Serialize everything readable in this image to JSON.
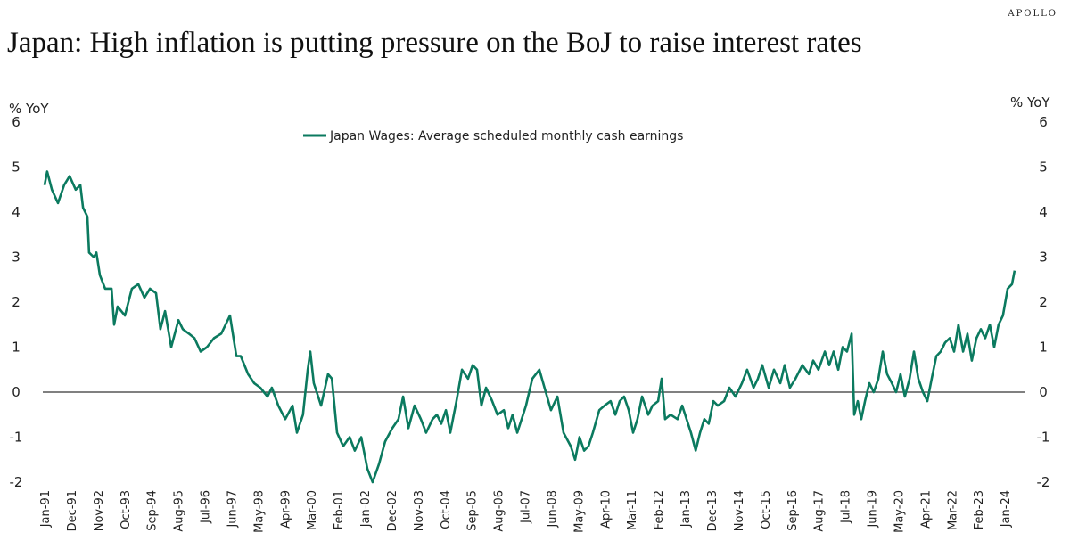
{
  "brand": "APOLLO",
  "title": "Japan: High inflation is putting pressure on the BoJ to raise interest rates",
  "chart_data": {
    "type": "line",
    "title": "Japan: High inflation is putting pressure on the BoJ to raise interest rates",
    "ylabel_left": "% YoY",
    "ylabel_right": "% YoY",
    "ylim": [
      -2,
      6
    ],
    "yticks": [
      "6",
      "5",
      "4",
      "3",
      "2",
      "1",
      "0",
      "-1",
      "-2"
    ],
    "x_unit": "years since Jan 1991",
    "xlim": [
      0,
      33.6
    ],
    "xtick_labels": [
      "Jan-91",
      "Dec-91",
      "Nov-92",
      "Oct-93",
      "Sep-94",
      "Aug-95",
      "Jul-96",
      "Jun-97",
      "May-98",
      "Apr-99",
      "Mar-00",
      "Feb-01",
      "Jan-02",
      "Dec-02",
      "Nov-03",
      "Oct-04",
      "Sep-05",
      "Aug-06",
      "Jul-07",
      "Jun-08",
      "May-09",
      "Apr-10",
      "Mar-11",
      "Feb-12",
      "Jan-13",
      "Dec-13",
      "Nov-14",
      "Oct-15",
      "Sep-16",
      "Aug-17",
      "Jul-18",
      "Jun-19",
      "May-20",
      "Apr-21",
      "Mar-22",
      "Feb-23",
      "Jan-24"
    ],
    "xtick_step_months": 11,
    "legend": "top-center",
    "series": [
      {
        "name": "Japan Wages: Average scheduled monthly cash earnings",
        "color": "#0b7a5f",
        "x": [
          0.0,
          0.09,
          0.25,
          0.46,
          0.67,
          0.86,
          1.07,
          1.23,
          1.32,
          1.47,
          1.53,
          1.69,
          1.78,
          1.9,
          2.08,
          2.3,
          2.39,
          2.51,
          2.76,
          3.0,
          3.22,
          3.43,
          3.62,
          3.83,
          3.98,
          4.14,
          4.35,
          4.6,
          4.75,
          4.96,
          5.15,
          5.36,
          5.58,
          5.82,
          6.07,
          6.37,
          6.59,
          6.74,
          6.99,
          7.2,
          7.41,
          7.66,
          7.81,
          8.03,
          8.27,
          8.52,
          8.67,
          8.88,
          9.04,
          9.13,
          9.25,
          9.5,
          9.74,
          9.87,
          10.05,
          10.26,
          10.48,
          10.66,
          10.88,
          11.09,
          11.27,
          11.49,
          11.7,
          11.95,
          12.16,
          12.32,
          12.5,
          12.71,
          12.93,
          13.11,
          13.33,
          13.48,
          13.63,
          13.79,
          13.94,
          14.15,
          14.34,
          14.55,
          14.71,
          14.86,
          15.01,
          15.17,
          15.38,
          15.56,
          15.78,
          15.93,
          16.08,
          16.24,
          16.54,
          16.76,
          17.0,
          17.22,
          17.4,
          17.62,
          17.83,
          18.08,
          18.23,
          18.38,
          18.54,
          18.69,
          18.84,
          19.06,
          19.24,
          19.45,
          19.61,
          19.76,
          19.91,
          20.07,
          20.22,
          20.37,
          20.53,
          20.74,
          20.89,
          21.08,
          21.2,
          21.32,
          21.51,
          21.75,
          21.91,
          22.06,
          22.21,
          22.37,
          22.52,
          22.67,
          22.82,
          22.98,
          23.13,
          23.35,
          23.53,
          23.74,
          23.96,
          24.14,
          24.36,
          24.51,
          24.66,
          24.88,
          25.06,
          25.28,
          25.43,
          25.61,
          25.8,
          26.04,
          26.26,
          26.41,
          26.59,
          26.81,
          26.96,
          27.11,
          27.27,
          27.42,
          27.57,
          27.73,
          27.82,
          27.94,
          28.06,
          28.19,
          28.34,
          28.49,
          28.65,
          28.8,
          28.95,
          29.11,
          29.26,
          29.41,
          29.56,
          29.72,
          29.87,
          30.02,
          30.18,
          30.33,
          30.48,
          30.64,
          30.79,
          30.94,
          31.1,
          31.25,
          31.4,
          31.56,
          31.71,
          31.86,
          32.02,
          32.17,
          32.32,
          32.48,
          32.63,
          32.78,
          32.93,
          33.09,
          33.24,
          33.33
        ],
        "values": [
          4.6,
          4.9,
          4.5,
          4.2,
          4.6,
          4.8,
          4.5,
          4.6,
          4.1,
          3.9,
          3.1,
          3.0,
          3.1,
          2.6,
          2.3,
          2.3,
          1.5,
          1.9,
          1.7,
          2.3,
          2.4,
          2.1,
          2.3,
          2.2,
          1.4,
          1.8,
          1.0,
          1.6,
          1.4,
          1.3,
          1.2,
          0.9,
          1.0,
          1.2,
          1.3,
          1.7,
          0.8,
          0.8,
          0.4,
          0.2,
          0.1,
          -0.1,
          0.1,
          -0.3,
          -0.6,
          -0.3,
          -0.9,
          -0.5,
          0.5,
          0.9,
          0.2,
          -0.3,
          0.4,
          0.3,
          -0.9,
          -1.2,
          -1.0,
          -1.3,
          -1.0,
          -1.7,
          -2.0,
          -1.6,
          -1.1,
          -0.8,
          -0.6,
          -0.1,
          -0.8,
          -0.3,
          -0.6,
          -0.9,
          -0.6,
          -0.5,
          -0.7,
          -0.4,
          -0.9,
          -0.2,
          0.5,
          0.3,
          0.6,
          0.5,
          -0.3,
          0.1,
          -0.2,
          -0.5,
          -0.4,
          -0.8,
          -0.5,
          -0.9,
          -0.3,
          0.3,
          0.5,
          0.0,
          -0.4,
          -0.1,
          -0.9,
          -1.2,
          -1.5,
          -1.0,
          -1.3,
          -1.2,
          -0.9,
          -0.4,
          -0.3,
          -0.2,
          -0.5,
          -0.2,
          -0.1,
          -0.4,
          -0.9,
          -0.6,
          -0.1,
          -0.5,
          -0.3,
          -0.2,
          0.3,
          -0.6,
          -0.5,
          -0.6,
          -0.3,
          -0.6,
          -0.9,
          -1.3,
          -0.9,
          -0.6,
          -0.7,
          -0.2,
          -0.3,
          -0.2,
          0.1,
          -0.1,
          0.2,
          0.5,
          0.1,
          0.3,
          0.6,
          0.1,
          0.5,
          0.2,
          0.6,
          0.1,
          0.3,
          0.6,
          0.4,
          0.7,
          0.5,
          0.9,
          0.6,
          0.9,
          0.5,
          1.0,
          0.9,
          1.3,
          -0.5,
          -0.2,
          -0.6,
          -0.2,
          0.2,
          0.0,
          0.3,
          0.9,
          0.4,
          0.2,
          0.0,
          0.4,
          -0.1,
          0.3,
          0.9,
          0.3,
          0.0,
          -0.2,
          0.3,
          0.8,
          0.9,
          1.1,
          1.2,
          0.9,
          1.5,
          0.9,
          1.3,
          0.7,
          1.2,
          1.4,
          1.2,
          1.5,
          1.0,
          1.5,
          1.7,
          2.3,
          2.4,
          2.7
        ]
      }
    ]
  }
}
